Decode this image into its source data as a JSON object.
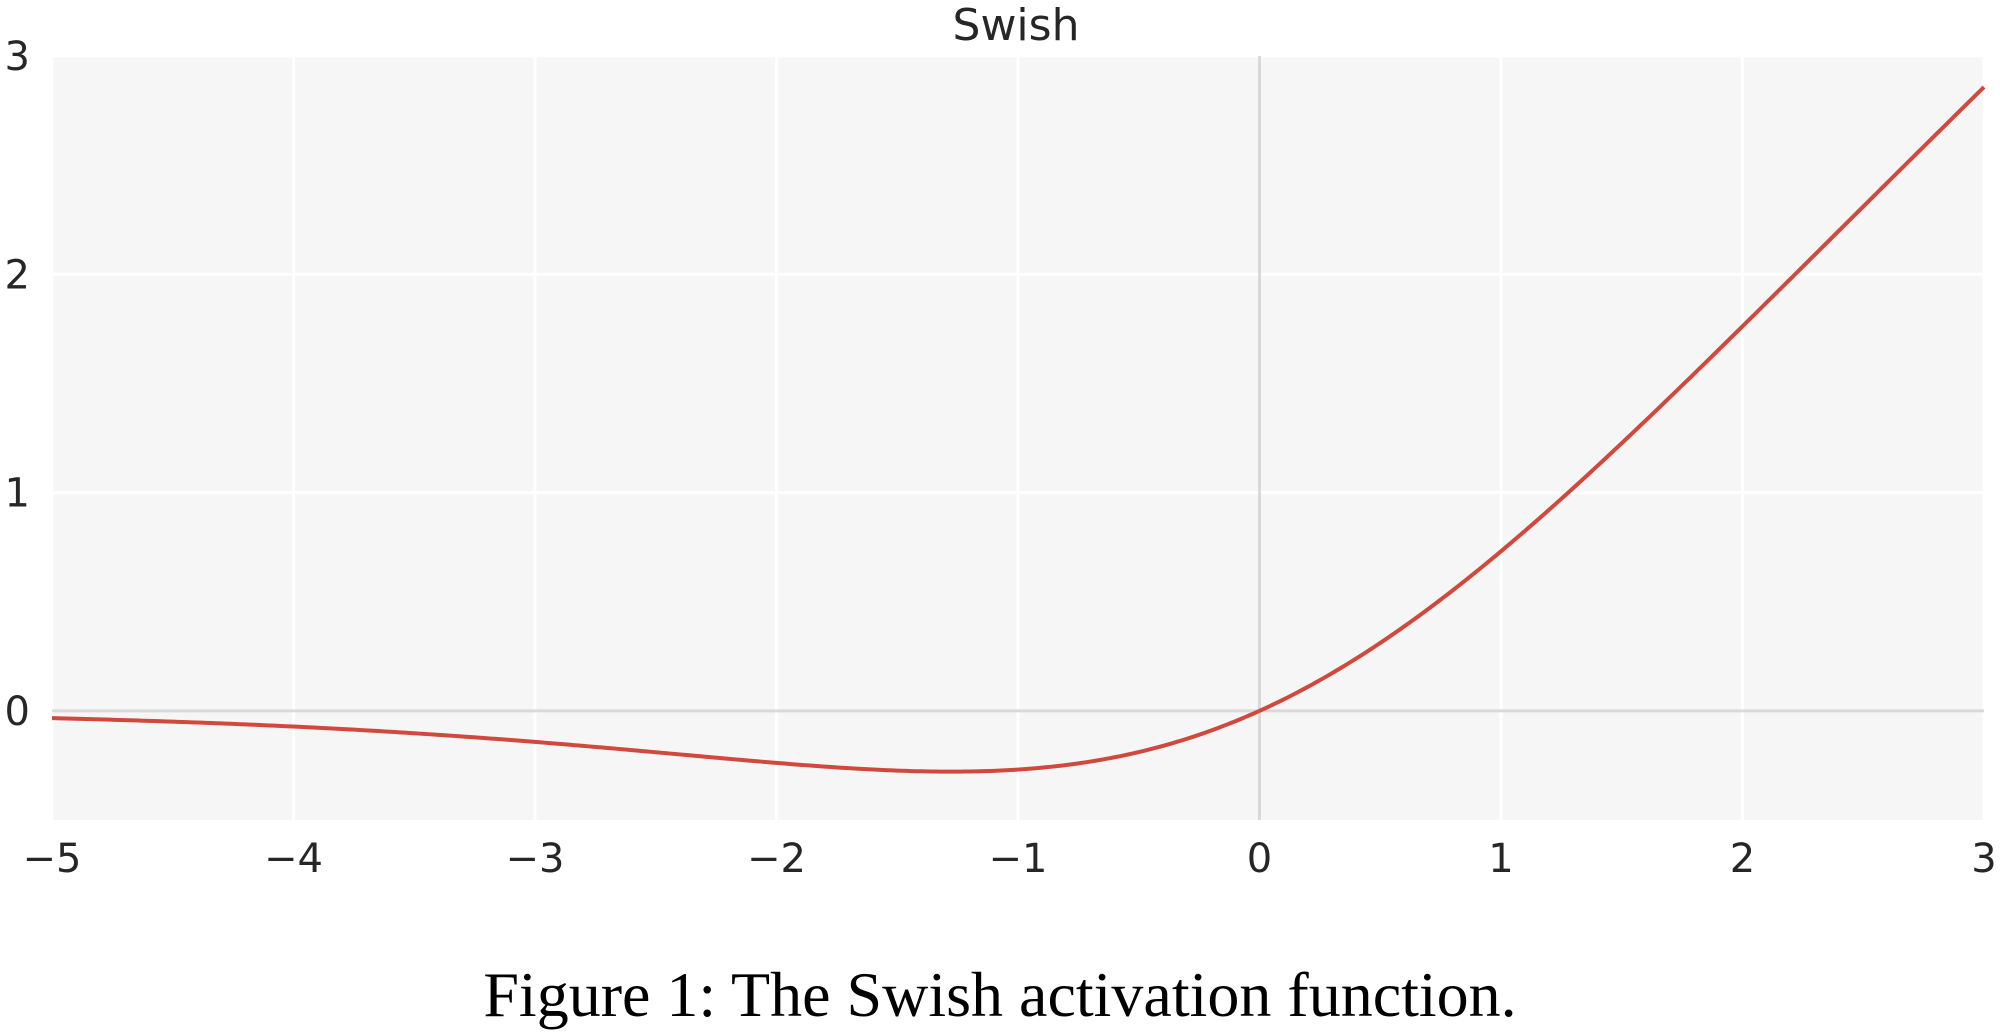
{
  "caption": "Figure 1: The Swish activation function.",
  "colors": {
    "line": "#d1483d",
    "plot_background": "#f6f6f6",
    "grid": "#ffffff",
    "zero_axis": "#d9d9d9",
    "text": "#262626"
  },
  "chart_data": {
    "type": "line",
    "title": "Swish",
    "xlabel": "",
    "ylabel": "",
    "xlim": [
      -5,
      3
    ],
    "ylim": [
      -0.5,
      3
    ],
    "grid": true,
    "x_ticks": [
      -5,
      -4,
      -3,
      -2,
      -1,
      0,
      1,
      2,
      3
    ],
    "x_tick_labels": [
      "−5",
      "−4",
      "−3",
      "−2",
      "−1",
      "0",
      "1",
      "2",
      "3"
    ],
    "y_ticks": [
      0,
      1,
      2,
      3
    ],
    "y_tick_labels": [
      "0",
      "1",
      "2",
      "3"
    ],
    "series": [
      {
        "x": [
          -5,
          -4.5,
          -4,
          -3.5,
          -3,
          -2.5,
          -2,
          -1.75,
          -1.5,
          -1.278,
          -1,
          -0.75,
          -0.5,
          -0.25,
          0,
          0.25,
          0.5,
          0.75,
          1,
          1.5,
          2,
          2.5,
          3
        ],
        "y": [
          -0.033,
          -0.049,
          -0.072,
          -0.101,
          -0.142,
          -0.19,
          -0.238,
          -0.258,
          -0.274,
          -0.278,
          -0.269,
          -0.24,
          -0.189,
          -0.109,
          0,
          0.141,
          0.311,
          0.51,
          0.731,
          1.227,
          1.762,
          2.309,
          2.858
        ]
      }
    ]
  }
}
